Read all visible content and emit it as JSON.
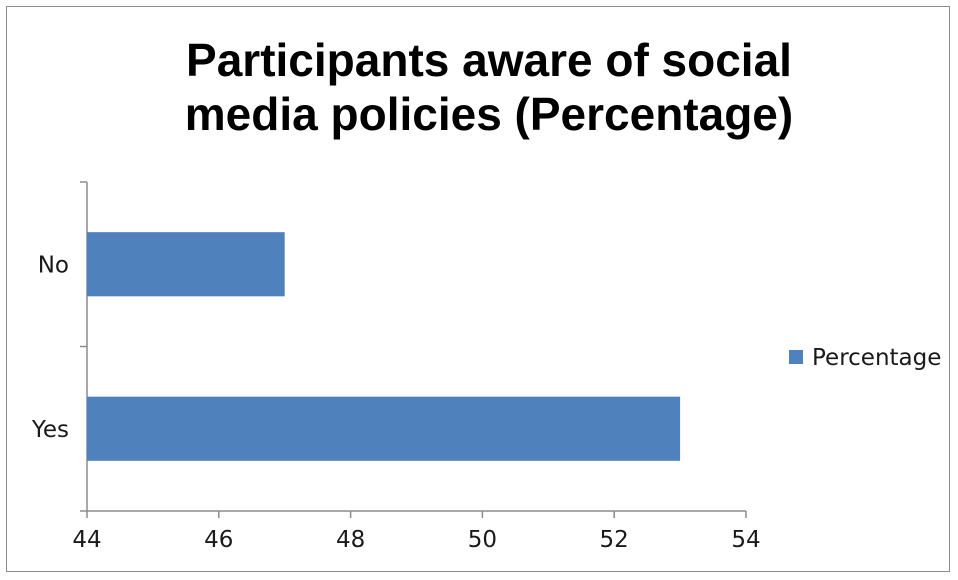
{
  "chart_data": {
    "type": "bar",
    "orientation": "horizontal",
    "title_lines": [
      "Participants aware of social",
      "media policies (Percentage)"
    ],
    "categories": [
      "No",
      "Yes"
    ],
    "series": [
      {
        "name": "Percentage",
        "values": [
          47,
          53
        ],
        "color": "#4f81bd"
      }
    ],
    "xlim": [
      44,
      54
    ],
    "xticks": [
      "44",
      "46",
      "48",
      "50",
      "52",
      "54"
    ],
    "grid": false,
    "legend_position": "right"
  }
}
